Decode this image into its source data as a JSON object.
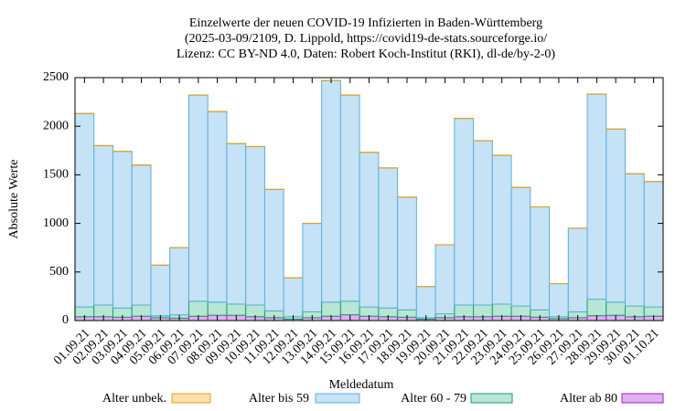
{
  "chart_data": {
    "type": "stacked_bar",
    "title": "Einzelwerte der neuen COVID-19 Infizierten in Baden-Württemberg",
    "subtitle": [
      "(2025-03-09/2109, D. Lippold, https://covid19-de-stats.sourceforge.io/",
      "Lizenz: CC BY-ND 4.0, Daten: Robert Koch-Institut (RKI), dl-de/by-2-0)"
    ],
    "x_label": "Meldedatum",
    "y_label": "Absolute Werte",
    "categories": [
      "01.09.21",
      "02.09.21",
      "03.09.21",
      "04.09.21",
      "05.09.21",
      "06.09.21",
      "07.09.21",
      "08.09.21",
      "09.09.21",
      "10.09.21",
      "11.09.21",
      "12.09.21",
      "13.09.21",
      "14.09.21",
      "15.09.21",
      "16.09.21",
      "17.09.21",
      "18.09.21",
      "19.09.21",
      "20.09.21",
      "21.09.21",
      "22.09.21",
      "23.09.21",
      "24.09.21",
      "25.09.21",
      "26.09.21",
      "27.09.21",
      "28.09.21",
      "29.09.21",
      "30.09.21",
      "01.10.21"
    ],
    "series": [
      {
        "name": "Alter unbek.",
        "color": "#fbe0a8",
        "stroke": "#e0a020",
        "values": [
          2,
          2,
          2,
          2,
          1,
          1,
          2,
          2,
          2,
          2,
          1,
          1,
          1,
          2,
          2,
          2,
          2,
          1,
          1,
          1,
          2,
          2,
          2,
          2,
          1,
          1,
          1,
          2,
          2,
          2,
          2
        ]
      },
      {
        "name": "Alter bis 59",
        "color": "#c6e2f7",
        "stroke": "#5ab0d8",
        "values": [
          1990,
          1640,
          1610,
          1440,
          520,
          690,
          2120,
          1960,
          1650,
          1630,
          1250,
          400,
          910,
          2280,
          2120,
          1590,
          1440,
          1160,
          320,
          710,
          1920,
          1690,
          1530,
          1220,
          1060,
          340,
          860,
          2110,
          1780,
          1360,
          1290
        ]
      },
      {
        "name": "Alter 60 - 79",
        "color": "#b8e6d4",
        "stroke": "#1a9e6a",
        "values": [
          100,
          120,
          95,
          115,
          20,
          35,
          155,
          135,
          115,
          120,
          70,
          25,
          60,
          145,
          140,
          95,
          90,
          75,
          15,
          40,
          120,
          120,
          125,
          105,
          75,
          20,
          60,
          170,
          135,
          110,
          95
        ]
      },
      {
        "name": "Alter ab 80",
        "color": "#e0b0f0",
        "stroke": "#9b1fc8",
        "values": [
          40,
          40,
          35,
          45,
          30,
          25,
          45,
          55,
          55,
          40,
          30,
          15,
          30,
          45,
          60,
          45,
          40,
          35,
          15,
          30,
          40,
          40,
          45,
          45,
          35,
          20,
          30,
          50,
          55,
          40,
          45
        ]
      }
    ],
    "ylim": [
      0,
      2500
    ],
    "yticks": [
      0,
      500,
      1000,
      1500,
      2000,
      2500
    ],
    "legend": "bottom"
  }
}
